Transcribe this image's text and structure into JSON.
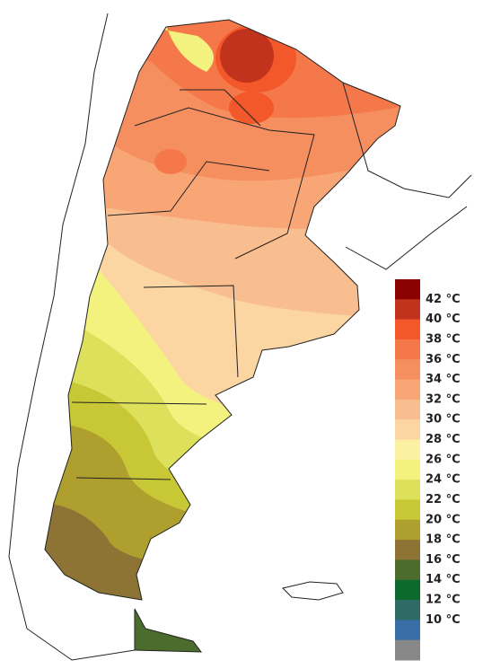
{
  "legend": {
    "colors": [
      "#8b0000",
      "#c1331c",
      "#f2582a",
      "#f4784a",
      "#f68f60",
      "#f8a676",
      "#f9be90",
      "#fbd6a2",
      "#fcf0a2",
      "#f4f27e",
      "#dde05a",
      "#c8c736",
      "#ae9f2e",
      "#8e7434",
      "#4c6c2e",
      "#0d6a2f",
      "#2f6a66",
      "#3a6ea6",
      "#888888"
    ],
    "labels": [
      "42 °C",
      "40 °C",
      "38 °C",
      "36 °C",
      "34 °C",
      "32 °C",
      "30 °C",
      "28 °C",
      "26 °C",
      "24 °C",
      "22 °C",
      "20 °C",
      "18 °C",
      "16 °C",
      "14 °C",
      "12 °C",
      "10 °C"
    ]
  }
}
